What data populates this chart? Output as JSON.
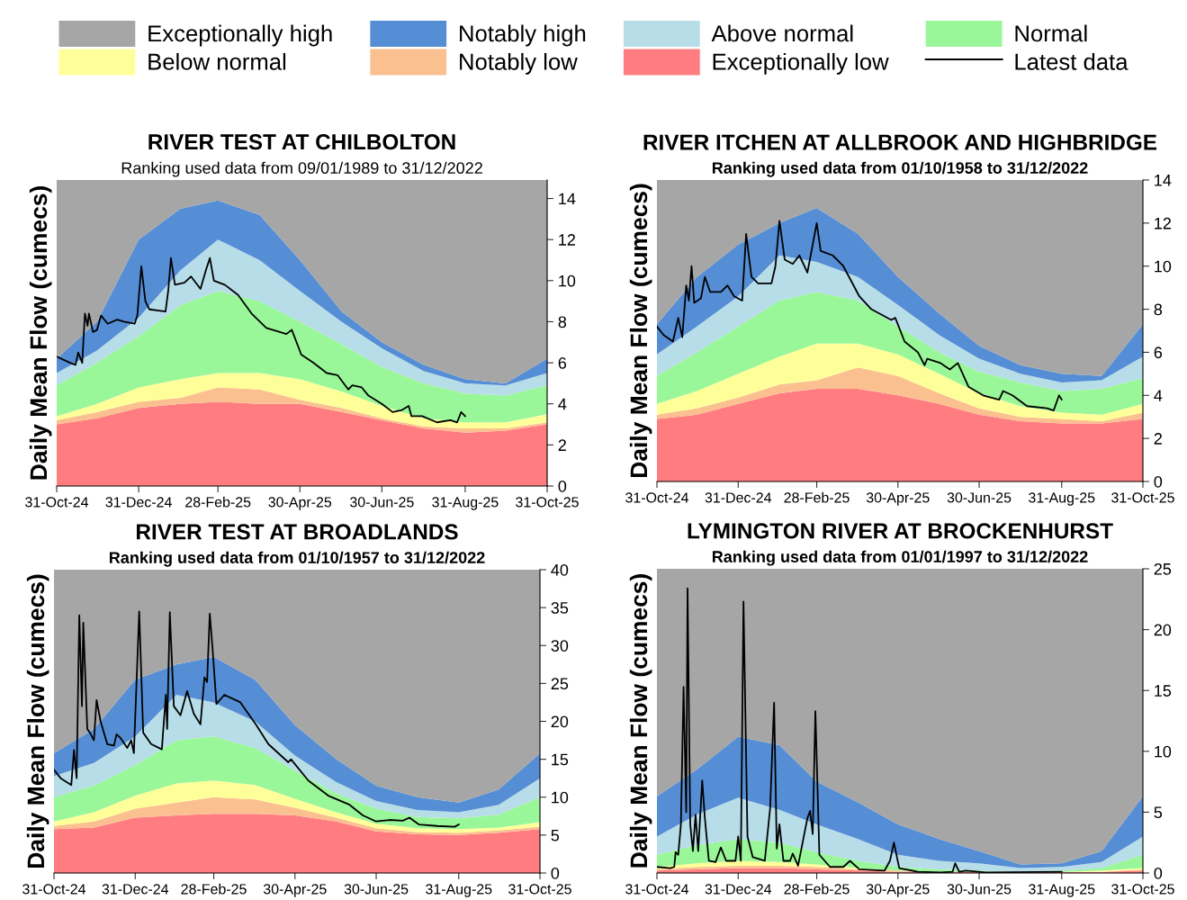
{
  "chart_data": [
    {
      "type": "area",
      "stacked": true,
      "title": "RIVER TEST AT CHILBOLTON",
      "subtitle": "Ranking used data from 09/01/1989 to 31/12/2022",
      "ylabel": "Daily Mean Flow (cumecs)",
      "legend": "top",
      "x": [
        "2024-10-31",
        "2024-11-30",
        "2024-12-31",
        "2025-01-31",
        "2025-02-28",
        "2025-03-31",
        "2025-04-30",
        "2025-05-31",
        "2025-06-30",
        "2025-07-31",
        "2025-08-31",
        "2025-09-30",
        "2025-10-31"
      ],
      "xlim": [
        "2024-10-31",
        "2025-10-31"
      ],
      "xticks": [
        {
          "value": "2024-10-31",
          "label": "31-Oct-24"
        },
        {
          "value": "2024-12-31",
          "label": "31-Dec-24"
        },
        {
          "value": "2025-02-28",
          "label": "28-Feb-25"
        },
        {
          "value": "2025-04-30",
          "label": "30-Apr-25"
        },
        {
          "value": "2025-06-30",
          "label": "30-Jun-25"
        },
        {
          "value": "2025-08-31",
          "label": "31-Aug-25"
        },
        {
          "value": "2025-10-31",
          "label": "31-Oct-25"
        }
      ],
      "ylim": [
        0,
        14.9
      ],
      "yticks": [
        0,
        2,
        4,
        6,
        8,
        10,
        12,
        14
      ],
      "series": [
        {
          "name": "Exceptionally low",
          "color": "#ff7c80",
          "values": [
            3.0,
            3.3,
            3.8,
            4.0,
            4.1,
            4.0,
            4.0,
            3.6,
            3.2,
            2.8,
            2.6,
            2.7,
            3.0
          ]
        },
        {
          "name": "Notably low",
          "color": "#fac090",
          "values": [
            0.2,
            0.3,
            0.3,
            0.3,
            0.7,
            0.7,
            0.2,
            0.2,
            0.1,
            0.1,
            0.2,
            0.1,
            0.1
          ]
        },
        {
          "name": "Below normal",
          "color": "#ffff99",
          "values": [
            0.2,
            0.4,
            0.7,
            0.9,
            0.7,
            0.8,
            1.0,
            0.8,
            0.6,
            0.4,
            0.3,
            0.3,
            0.4
          ]
        },
        {
          "name": "Normal",
          "color": "#99f799",
          "values": [
            1.5,
            2.0,
            2.5,
            3.6,
            4.0,
            3.5,
            2.8,
            2.3,
            1.9,
            1.7,
            1.4,
            1.3,
            1.4
          ]
        },
        {
          "name": "Above normal",
          "color": "#b7dde8",
          "values": [
            0.6,
            0.6,
            0.9,
            1.7,
            2.5,
            2.0,
            1.5,
            1.1,
            0.9,
            0.6,
            0.5,
            0.5,
            0.6
          ]
        },
        {
          "name": "Notably high",
          "color": "#558ed5",
          "values": [
            0.7,
            1.4,
            3.8,
            3.0,
            1.9,
            2.2,
            1.5,
            0.5,
            0.3,
            0.3,
            0.2,
            0.1,
            0.7
          ]
        },
        {
          "name": "Exceptionally high",
          "color": "#a6a6a6",
          "values": [
            8.7,
            6.9,
            2.9,
            1.4,
            1.0,
            1.7,
            3.9,
            6.4,
            7.9,
            9.0,
            9.7,
            9.9,
            8.7
          ]
        },
        {
          "name": "Latest data",
          "type": "line",
          "color": "#000000",
          "x": [
            "2024-10-31",
            "2024-11-10",
            "2024-11-14",
            "2024-11-16",
            "2024-11-19",
            "2024-11-21",
            "2024-11-23",
            "2024-11-24",
            "2024-11-27",
            "2024-11-30",
            "2024-12-03",
            "2024-12-08",
            "2024-12-15",
            "2024-12-20",
            "2024-12-28",
            "2024-12-30",
            "2025-01-02",
            "2025-01-05",
            "2025-01-08",
            "2025-01-20",
            "2025-01-22",
            "2025-01-24",
            "2025-01-27",
            "2025-02-03",
            "2025-02-08",
            "2025-02-15",
            "2025-02-19",
            "2025-02-22",
            "2025-02-25",
            "2025-03-05",
            "2025-03-15",
            "2025-03-25",
            "2025-04-05",
            "2025-04-20",
            "2025-04-24",
            "2025-05-01",
            "2025-05-10",
            "2025-05-20",
            "2025-05-28",
            "2025-06-05",
            "2025-06-08",
            "2025-06-15",
            "2025-06-20",
            "2025-06-30",
            "2025-07-08",
            "2025-07-15",
            "2025-07-20",
            "2025-07-22",
            "2025-07-30",
            "2025-08-10",
            "2025-08-20",
            "2025-08-25",
            "2025-08-28",
            "2025-08-31"
          ],
          "values": [
            6.3,
            6.0,
            5.9,
            6.5,
            6.0,
            8.4,
            7.8,
            8.4,
            7.5,
            7.6,
            8.3,
            7.9,
            8.1,
            8.0,
            7.9,
            8.3,
            10.7,
            9.0,
            8.6,
            8.5,
            9.5,
            11.1,
            9.8,
            9.9,
            10.2,
            9.6,
            10.5,
            11.1,
            10.0,
            9.8,
            9.3,
            8.4,
            7.7,
            7.4,
            7.6,
            6.4,
            6.0,
            5.5,
            5.4,
            4.7,
            4.9,
            4.8,
            4.4,
            4.0,
            3.6,
            3.7,
            3.9,
            3.4,
            3.4,
            3.1,
            3.2,
            3.1,
            3.6,
            3.4
          ]
        }
      ]
    },
    {
      "type": "area",
      "stacked": true,
      "title": "RIVER ITCHEN AT ALLBROOK AND HIGHBRIDGE",
      "subtitle": "Ranking used data from 01/10/1958 to 31/12/2022",
      "ylabel": "Daily Mean Flow (cumecs)",
      "x": [
        "2024-10-31",
        "2024-11-30",
        "2024-12-31",
        "2025-01-31",
        "2025-02-28",
        "2025-03-31",
        "2025-04-30",
        "2025-05-31",
        "2025-06-30",
        "2025-07-31",
        "2025-08-31",
        "2025-09-30",
        "2025-10-31"
      ],
      "xlim": [
        "2024-10-31",
        "2025-10-31"
      ],
      "xticks": [
        {
          "value": "2024-10-31",
          "label": "31-Oct-24"
        },
        {
          "value": "2024-12-31",
          "label": "31-Dec-24"
        },
        {
          "value": "2025-02-28",
          "label": "28-Feb-25"
        },
        {
          "value": "2025-04-30",
          "label": "30-Apr-25"
        },
        {
          "value": "2025-06-30",
          "label": "30-Jun-25"
        },
        {
          "value": "2025-08-31",
          "label": "31-Aug-25"
        },
        {
          "value": "2025-10-31",
          "label": "31-Oct-25"
        }
      ],
      "ylim": [
        0,
        14
      ],
      "yticks": [
        0,
        2,
        4,
        6,
        8,
        10,
        12,
        14
      ],
      "series": [
        {
          "color": "#ff7c80",
          "values": [
            2.9,
            3.1,
            3.6,
            4.1,
            4.3,
            4.3,
            4.0,
            3.6,
            3.1,
            2.8,
            2.7,
            2.7,
            2.9
          ]
        },
        {
          "color": "#fac090",
          "values": [
            0.2,
            0.3,
            0.3,
            0.4,
            0.4,
            1.0,
            0.9,
            0.5,
            0.3,
            0.2,
            0.2,
            0.1,
            0.3
          ]
        },
        {
          "color": "#ffff99",
          "values": [
            0.5,
            0.8,
            1.1,
            1.3,
            1.7,
            1.1,
            1.0,
            0.9,
            0.7,
            0.5,
            0.3,
            0.3,
            0.4
          ]
        },
        {
          "color": "#99f799",
          "values": [
            1.3,
            1.8,
            2.2,
            2.6,
            2.4,
            2.0,
            1.3,
            1.0,
            1.0,
            1.1,
            1.0,
            1.2,
            1.2
          ]
        },
        {
          "color": "#b7dde8",
          "values": [
            1.0,
            1.2,
            1.4,
            2.1,
            1.4,
            1.1,
            1.0,
            0.8,
            0.6,
            0.4,
            0.4,
            0.4,
            1.0
          ]
        },
        {
          "color": "#558ed5",
          "values": [
            1.4,
            2.3,
            2.4,
            1.5,
            2.5,
            2.0,
            1.3,
            1.0,
            0.6,
            0.4,
            0.4,
            0.2,
            1.5
          ]
        },
        {
          "color": "#a6a6a6",
          "values": [
            6.7,
            4.5,
            3.0,
            2.0,
            1.3,
            2.5,
            4.5,
            6.2,
            7.7,
            8.6,
            9.0,
            9.1,
            6.7
          ]
        },
        {
          "type": "line",
          "color": "#000000",
          "x": [
            "2024-10-31",
            "2024-11-05",
            "2024-11-12",
            "2024-11-16",
            "2024-11-19",
            "2024-11-22",
            "2024-11-24",
            "2024-11-26",
            "2024-11-28",
            "2024-12-03",
            "2024-12-06",
            "2024-12-10",
            "2024-12-18",
            "2024-12-23",
            "2024-12-28",
            "2025-01-03",
            "2025-01-06",
            "2025-01-10",
            "2025-01-15",
            "2025-01-25",
            "2025-01-28",
            "2025-01-31",
            "2025-02-04",
            "2025-02-10",
            "2025-02-15",
            "2025-02-21",
            "2025-02-25",
            "2025-02-28",
            "2025-03-03",
            "2025-03-12",
            "2025-03-20",
            "2025-04-01",
            "2025-04-10",
            "2025-04-25",
            "2025-04-28",
            "2025-05-05",
            "2025-05-15",
            "2025-05-20",
            "2025-05-22",
            "2025-06-01",
            "2025-06-08",
            "2025-06-14",
            "2025-06-22",
            "2025-07-03",
            "2025-07-15",
            "2025-07-18",
            "2025-07-25",
            "2025-08-05",
            "2025-08-20",
            "2025-08-25",
            "2025-08-29",
            "2025-08-31"
          ],
          "values": [
            7.2,
            6.8,
            6.5,
            7.6,
            6.7,
            9.1,
            8.4,
            10.0,
            8.3,
            8.5,
            9.5,
            8.8,
            8.8,
            9.1,
            8.6,
            8.4,
            11.5,
            9.5,
            9.2,
            9.2,
            10.0,
            12.1,
            10.3,
            10.1,
            10.5,
            9.7,
            11.0,
            12.0,
            10.7,
            10.5,
            10.0,
            8.6,
            8.0,
            7.5,
            7.6,
            6.5,
            6.0,
            5.4,
            5.7,
            5.5,
            5.2,
            5.5,
            4.4,
            4.0,
            3.8,
            4.2,
            4.0,
            3.5,
            3.4,
            3.3,
            4.0,
            3.8
          ]
        }
      ]
    },
    {
      "type": "area",
      "stacked": true,
      "title": "RIVER TEST AT BROADLANDS",
      "subtitle": "Ranking used data from 01/10/1957 to 31/12/2022",
      "ylabel": "Daily Mean Flow (cumecs)",
      "x": [
        "2024-10-31",
        "2024-11-30",
        "2024-12-31",
        "2025-01-31",
        "2025-02-28",
        "2025-03-31",
        "2025-04-30",
        "2025-05-31",
        "2025-06-30",
        "2025-07-31",
        "2025-08-31",
        "2025-09-30",
        "2025-10-31"
      ],
      "xlim": [
        "2024-10-31",
        "2025-10-31"
      ],
      "xticks": [
        {
          "value": "2024-10-31",
          "label": "31-Oct-24"
        },
        {
          "value": "2024-12-31",
          "label": "31-Dec-24"
        },
        {
          "value": "2025-02-28",
          "label": "28-Feb-25"
        },
        {
          "value": "2025-04-30",
          "label": "30-Apr-25"
        },
        {
          "value": "2025-06-30",
          "label": "30-Jun-25"
        },
        {
          "value": "2025-08-31",
          "label": "31-Aug-25"
        },
        {
          "value": "2025-10-31",
          "label": "31-Oct-25"
        }
      ],
      "ylim": [
        0,
        40
      ],
      "yticks": [
        0,
        5,
        10,
        15,
        20,
        25,
        30,
        35,
        40
      ],
      "series": [
        {
          "color": "#ff7c80",
          "values": [
            5.8,
            6.0,
            7.3,
            7.6,
            7.8,
            7.8,
            7.6,
            6.8,
            5.5,
            5.1,
            5.0,
            5.3,
            5.8
          ]
        },
        {
          "color": "#fac090",
          "values": [
            0.4,
            0.8,
            1.2,
            1.7,
            2.2,
            1.9,
            1.0,
            0.5,
            0.4,
            0.3,
            0.3,
            0.3,
            0.3
          ]
        },
        {
          "color": "#ffff99",
          "values": [
            0.6,
            1.2,
            1.7,
            2.5,
            2.2,
            1.9,
            1.2,
            0.7,
            0.6,
            0.5,
            0.5,
            0.4,
            0.6
          ]
        },
        {
          "color": "#99f799",
          "values": [
            3.2,
            3.5,
            4.0,
            5.7,
            5.8,
            4.9,
            3.7,
            2.5,
            2.0,
            1.5,
            1.4,
            1.7,
            3.3
          ]
        },
        {
          "color": "#b7dde8",
          "values": [
            2.8,
            3.0,
            3.8,
            6.0,
            4.5,
            3.5,
            2.0,
            1.5,
            1.0,
            0.9,
            0.8,
            1.3,
            2.5
          ]
        },
        {
          "color": "#558ed5",
          "values": [
            3.0,
            4.5,
            7.5,
            4.0,
            6.0,
            5.5,
            4.0,
            3.0,
            2.0,
            1.7,
            1.3,
            2.0,
            3.3
          ]
        },
        {
          "color": "#a6a6a6",
          "values": [
            24.2,
            21.0,
            14.5,
            12.5,
            11.5,
            14.5,
            20.5,
            25.0,
            28.5,
            30.0,
            30.7,
            29.0,
            24.2
          ]
        },
        {
          "type": "line",
          "color": "#000000",
          "x": [
            "2024-10-31",
            "2024-11-05",
            "2024-11-13",
            "2024-11-15",
            "2024-11-17",
            "2024-11-19",
            "2024-11-21",
            "2024-11-22",
            "2024-11-25",
            "2024-11-27",
            "2024-11-30",
            "2024-12-02",
            "2024-12-05",
            "2024-12-10",
            "2024-12-15",
            "2024-12-17",
            "2024-12-20",
            "2024-12-25",
            "2024-12-28",
            "2024-12-30",
            "2025-01-03",
            "2025-01-06",
            "2025-01-12",
            "2025-01-20",
            "2025-01-23",
            "2025-01-24",
            "2025-01-26",
            "2025-01-29",
            "2025-02-03",
            "2025-02-08",
            "2025-02-13",
            "2025-02-18",
            "2025-02-21",
            "2025-02-23",
            "2025-02-25",
            "2025-02-27",
            "2025-03-02",
            "2025-03-08",
            "2025-03-20",
            "2025-04-01",
            "2025-04-10",
            "2025-04-25",
            "2025-04-27",
            "2025-05-10",
            "2025-05-25",
            "2025-06-10",
            "2025-06-20",
            "2025-06-30",
            "2025-07-10",
            "2025-07-20",
            "2025-07-25",
            "2025-08-01",
            "2025-08-15",
            "2025-08-28",
            "2025-08-31"
          ],
          "values": [
            13.6,
            12.5,
            11.6,
            16.2,
            12.5,
            34.0,
            22.0,
            33.0,
            19.0,
            18.5,
            17.5,
            22.8,
            20.0,
            17.0,
            16.8,
            18.3,
            17.8,
            16.5,
            17.5,
            15.8,
            34.5,
            18.5,
            17.0,
            16.3,
            23.5,
            19.0,
            34.4,
            22.0,
            20.8,
            24.0,
            21.0,
            19.6,
            25.8,
            25.2,
            34.2,
            29.8,
            22.3,
            23.5,
            22.5,
            19.5,
            17.0,
            14.6,
            15.0,
            12.2,
            10.2,
            9.0,
            7.6,
            6.8,
            7.0,
            6.9,
            7.3,
            6.4,
            6.2,
            6.1,
            6.4
          ]
        }
      ]
    },
    {
      "type": "area",
      "stacked": true,
      "title": "LYMINGTON RIVER AT BROCKENHURST",
      "subtitle": "Ranking used data from 01/01/1997 to 31/12/2022",
      "ylabel": "Daily Mean Flow (cumecs)",
      "x": [
        "2024-10-31",
        "2024-11-30",
        "2024-12-31",
        "2025-01-31",
        "2025-02-28",
        "2025-03-31",
        "2025-04-30",
        "2025-05-31",
        "2025-06-30",
        "2025-07-31",
        "2025-08-31",
        "2025-09-30",
        "2025-10-31"
      ],
      "xlim": [
        "2024-10-31",
        "2025-10-31"
      ],
      "xticks": [
        {
          "value": "2024-10-31",
          "label": "31-Oct-24"
        },
        {
          "value": "2024-12-31",
          "label": "31-Dec-24"
        },
        {
          "value": "2025-02-28",
          "label": "28-Feb-25"
        },
        {
          "value": "2025-04-30",
          "label": "30-Apr-25"
        },
        {
          "value": "2025-06-30",
          "label": "30-Jun-25"
        },
        {
          "value": "2025-08-31",
          "label": "31-Aug-25"
        },
        {
          "value": "2025-10-31",
          "label": "31-Oct-25"
        }
      ],
      "ylim": [
        0,
        25
      ],
      "yticks": [
        0,
        5,
        10,
        15,
        20,
        25
      ],
      "series": [
        {
          "color": "#ff7c80",
          "values": [
            0.2,
            0.3,
            0.4,
            0.4,
            0.3,
            0.2,
            0.1,
            0.1,
            0.1,
            0.1,
            0.1,
            0.1,
            0.2
          ]
        },
        {
          "color": "#fac090",
          "values": [
            0.1,
            0.2,
            0.2,
            0.2,
            0.2,
            0.1,
            0.1,
            0,
            0,
            0,
            0,
            0,
            0.1
          ]
        },
        {
          "color": "#ffff99",
          "values": [
            0.2,
            0.3,
            0.4,
            0.3,
            0.2,
            0.1,
            0,
            0,
            0,
            0,
            0,
            0.1,
            0.1
          ]
        },
        {
          "color": "#99f799",
          "values": [
            1.0,
            1.5,
            1.8,
            1.6,
            1.0,
            0.6,
            0.3,
            0.2,
            0.1,
            0,
            0.1,
            0.2,
            1.1
          ]
        },
        {
          "color": "#b7dde8",
          "values": [
            1.5,
            2.5,
            3.4,
            2.7,
            2.3,
            1.8,
            1.0,
            0.7,
            0.6,
            0.3,
            0.3,
            0.5,
            1.5
          ]
        },
        {
          "color": "#558ed5",
          "values": [
            3.3,
            3.7,
            5.0,
            5.3,
            3.5,
            3.0,
            2.5,
            1.8,
            1.0,
            0.3,
            0.3,
            0.9,
            3.3
          ]
        },
        {
          "color": "#a6a6a6",
          "values": [
            18.7,
            16.5,
            13.8,
            14.5,
            17.5,
            19.2,
            21.0,
            22.2,
            23.2,
            24.3,
            24.2,
            23.2,
            18.7
          ]
        },
        {
          "type": "line",
          "color": "#000000",
          "x": [
            "2024-10-31",
            "2024-11-10",
            "2024-11-13",
            "2024-11-14",
            "2024-11-16",
            "2024-11-18",
            "2024-11-20",
            "2024-11-22",
            "2024-11-23",
            "2024-11-25",
            "2024-11-27",
            "2024-11-29",
            "2024-12-01",
            "2024-12-04",
            "2024-12-06",
            "2024-12-09",
            "2024-12-14",
            "2024-12-18",
            "2024-12-22",
            "2024-12-29",
            "2024-12-31",
            "2025-01-02",
            "2025-01-04",
            "2025-01-07",
            "2025-01-11",
            "2025-01-20",
            "2025-01-24",
            "2025-01-27",
            "2025-01-29",
            "2025-01-31",
            "2025-02-03",
            "2025-02-08",
            "2025-02-10",
            "2025-02-14",
            "2025-02-21",
            "2025-02-23",
            "2025-02-25",
            "2025-02-27",
            "2025-03-02",
            "2025-03-10",
            "2025-03-20",
            "2025-03-25",
            "2025-04-01",
            "2025-04-20",
            "2025-04-24",
            "2025-04-27",
            "2025-05-01",
            "2025-05-15",
            "2025-06-01",
            "2025-06-10",
            "2025-06-12",
            "2025-06-15",
            "2025-06-20",
            "2025-07-05",
            "2025-08-31"
          ],
          "values": [
            0.5,
            0.4,
            0.5,
            1.7,
            1.5,
            4.0,
            15.3,
            5.0,
            23.4,
            4.0,
            1.8,
            4.8,
            1.8,
            7.6,
            4.5,
            1.0,
            0.9,
            2.1,
            1.0,
            1.0,
            3.0,
            1.0,
            22.3,
            3.0,
            1.3,
            1.0,
            5.3,
            14.0,
            2.0,
            4.0,
            1.0,
            1.0,
            1.6,
            0.6,
            4.5,
            5.1,
            3.2,
            13.3,
            1.5,
            0.5,
            0.5,
            1.0,
            0.3,
            0.2,
            1.0,
            2.5,
            0.4,
            0.1,
            0.05,
            0.1,
            0.8,
            0.1,
            0.2,
            0.05,
            0.1
          ]
        }
      ]
    }
  ]
}
